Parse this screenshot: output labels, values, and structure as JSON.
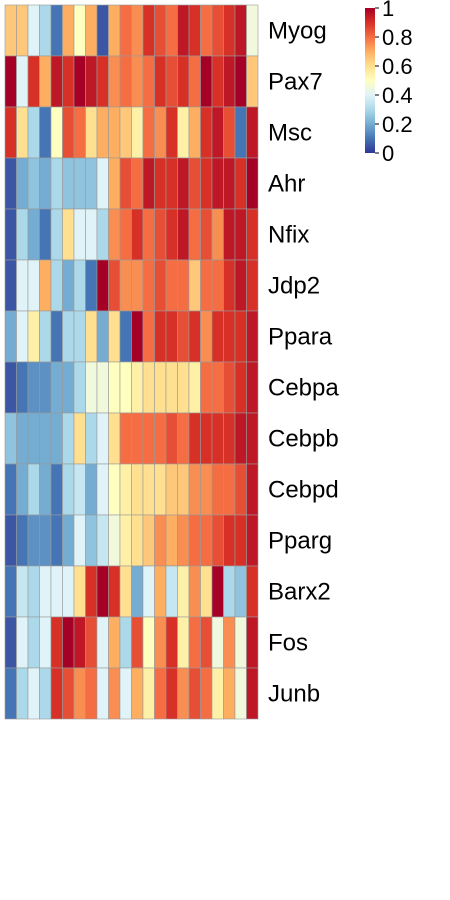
{
  "chart_data": {
    "type": "heatmap",
    "title": "",
    "rows": [
      "Myog",
      "Pax7",
      "Msc",
      "Ahr",
      "Nfix",
      "Jdp2",
      "Ppara",
      "Cebpa",
      "Cebpb",
      "Cebpd",
      "Pparg",
      "Barx2",
      "Fos",
      "Junb"
    ],
    "n_columns": 22,
    "values": [
      [
        0.65,
        0.65,
        0.4,
        0.3,
        0.1,
        0.7,
        0.5,
        0.7,
        0.05,
        0.7,
        0.8,
        0.75,
        0.9,
        0.85,
        0.8,
        0.95,
        0.9,
        0.8,
        0.85,
        0.9,
        0.95,
        0.45
      ],
      [
        1.0,
        0.4,
        0.9,
        0.7,
        0.95,
        0.9,
        1.0,
        0.95,
        0.9,
        0.75,
        0.8,
        0.75,
        0.8,
        0.9,
        0.85,
        0.9,
        0.8,
        1.0,
        0.9,
        0.95,
        1.0,
        0.65
      ],
      [
        0.9,
        0.6,
        0.3,
        0.1,
        0.5,
        0.85,
        0.8,
        0.6,
        0.7,
        0.7,
        0.65,
        0.55,
        0.8,
        0.75,
        0.9,
        0.55,
        0.7,
        0.9,
        0.95,
        0.85,
        0.1,
        0.95
      ],
      [
        0.05,
        0.2,
        0.25,
        0.2,
        0.3,
        0.25,
        0.25,
        0.25,
        0.4,
        0.7,
        0.85,
        0.8,
        0.95,
        0.9,
        0.9,
        0.95,
        0.85,
        0.9,
        0.95,
        0.95,
        0.9,
        1.0
      ],
      [
        0.05,
        0.3,
        0.2,
        0.1,
        0.3,
        0.6,
        0.4,
        0.4,
        0.3,
        0.75,
        0.8,
        0.9,
        0.8,
        0.85,
        0.9,
        0.95,
        0.8,
        0.85,
        0.75,
        0.95,
        0.95,
        0.9
      ],
      [
        0.05,
        0.4,
        0.4,
        0.7,
        0.3,
        0.2,
        0.3,
        0.1,
        1.0,
        0.85,
        0.75,
        0.75,
        0.8,
        0.85,
        0.8,
        0.8,
        0.65,
        0.8,
        0.8,
        0.9,
        0.95,
        0.9
      ],
      [
        0.2,
        0.4,
        0.55,
        0.3,
        0.1,
        0.3,
        0.3,
        0.6,
        0.2,
        0.6,
        0.1,
        1.0,
        0.8,
        0.9,
        0.9,
        0.85,
        0.9,
        0.75,
        0.9,
        0.9,
        0.9,
        0.95
      ],
      [
        0.05,
        0.1,
        0.15,
        0.15,
        0.2,
        0.2,
        0.3,
        0.45,
        0.45,
        0.5,
        0.5,
        0.55,
        0.6,
        0.6,
        0.6,
        0.6,
        0.55,
        0.8,
        0.8,
        0.85,
        0.9,
        0.95
      ],
      [
        0.25,
        0.2,
        0.2,
        0.2,
        0.2,
        0.3,
        0.6,
        0.3,
        0.4,
        0.6,
        0.8,
        0.8,
        0.8,
        0.8,
        0.85,
        0.8,
        0.9,
        0.9,
        0.9,
        0.9,
        0.95,
        0.95
      ],
      [
        0.1,
        0.2,
        0.3,
        0.2,
        0.1,
        0.3,
        0.35,
        0.2,
        0.4,
        0.5,
        0.55,
        0.6,
        0.6,
        0.6,
        0.65,
        0.65,
        0.75,
        0.75,
        0.8,
        0.8,
        0.85,
        0.95
      ],
      [
        0.05,
        0.1,
        0.15,
        0.15,
        0.1,
        0.2,
        0.4,
        0.25,
        0.35,
        0.45,
        0.55,
        0.6,
        0.65,
        0.75,
        0.7,
        0.75,
        0.8,
        0.8,
        0.85,
        0.9,
        0.9,
        0.95
      ],
      [
        0.1,
        0.35,
        0.3,
        0.4,
        0.4,
        0.4,
        0.6,
        0.9,
        1.0,
        0.9,
        0.6,
        0.2,
        0.4,
        0.7,
        0.35,
        0.55,
        0.75,
        0.6,
        1.0,
        0.3,
        0.25,
        0.9
      ],
      [
        0.05,
        0.4,
        0.3,
        0.4,
        0.9,
        1.0,
        0.95,
        0.85,
        0.4,
        0.7,
        0.3,
        0.85,
        0.5,
        0.75,
        0.9,
        0.55,
        0.8,
        0.85,
        0.45,
        0.75,
        0.45,
        0.95
      ],
      [
        0.1,
        0.3,
        0.4,
        0.3,
        0.9,
        0.85,
        0.75,
        0.8,
        0.4,
        0.75,
        0.4,
        0.7,
        0.55,
        0.8,
        0.9,
        0.75,
        0.85,
        0.8,
        0.55,
        0.7,
        0.45,
        0.95
      ]
    ],
    "column_labels": [],
    "xlabel": "",
    "ylabel": "",
    "legend": {
      "position": "top-right",
      "ticks": [
        "1",
        "0.8",
        "0.6",
        "0.4",
        "0.2",
        "0"
      ],
      "range": [
        0,
        1
      ]
    },
    "colors": {
      "scale": [
        "#313695",
        "#4575b4",
        "#74add1",
        "#abd9e9",
        "#e0f3f8",
        "#ffffbf",
        "#fee090",
        "#fdae61",
        "#f46d43",
        "#d73027",
        "#a50026"
      ],
      "cell_border": "#999999"
    }
  }
}
